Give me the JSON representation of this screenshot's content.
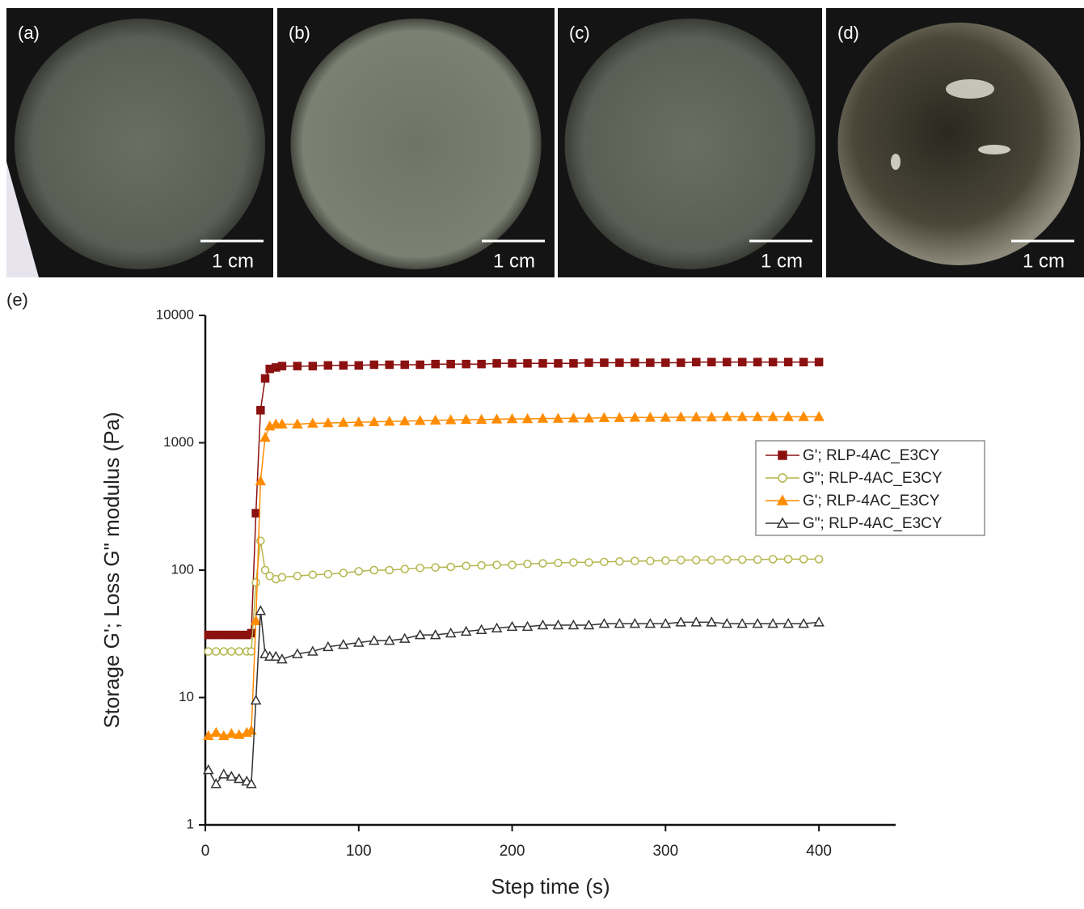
{
  "panels": [
    {
      "label": "(a)",
      "scale": "1 cm"
    },
    {
      "label": "(b)",
      "scale": "1 cm"
    },
    {
      "label": "(c)",
      "scale": "1 cm"
    },
    {
      "label": "(d)",
      "scale": "1 cm"
    }
  ],
  "chart_label": "(e)",
  "chart_data": {
    "type": "line",
    "x_label": "Step time (s)",
    "y_label": "Storage G'; Loss G\" modulus (Pa)",
    "xlim": [
      0,
      450
    ],
    "xticks": [
      0,
      100,
      200,
      300,
      400
    ],
    "ylim": [
      1,
      10000
    ],
    "yticks": [
      1,
      10,
      100,
      1000,
      10000
    ],
    "y_scale": "log",
    "legend": "right",
    "x": [
      2,
      7,
      12,
      17,
      22,
      27,
      30,
      33,
      36,
      39,
      42,
      46,
      50,
      60,
      70,
      80,
      90,
      100,
      110,
      120,
      130,
      140,
      150,
      160,
      170,
      180,
      190,
      200,
      210,
      220,
      230,
      240,
      250,
      260,
      270,
      280,
      290,
      300,
      310,
      320,
      330,
      340,
      350,
      360,
      370,
      380,
      390,
      400
    ],
    "series": [
      {
        "name": "G'; RLP-4AC_E3CY",
        "color": "#8b1010",
        "marker": "square",
        "filled": true,
        "values": [
          31,
          31,
          31,
          31,
          31,
          31,
          32,
          280,
          1800,
          3200,
          3800,
          3900,
          4000,
          4000,
          4000,
          4050,
          4050,
          4050,
          4100,
          4100,
          4100,
          4100,
          4150,
          4150,
          4150,
          4150,
          4200,
          4200,
          4200,
          4200,
          4200,
          4200,
          4250,
          4250,
          4250,
          4250,
          4250,
          4250,
          4250,
          4300,
          4300,
          4300,
          4300,
          4300,
          4300,
          4300,
          4300,
          4300
        ]
      },
      {
        "name": "G\"; RLP-4AC_E3CY",
        "color": "#b3b64a",
        "marker": "circle",
        "filled": false,
        "values": [
          23,
          23,
          23,
          23,
          23,
          23,
          23,
          80,
          170,
          100,
          90,
          85,
          88,
          90,
          92,
          93,
          95,
          98,
          100,
          100,
          102,
          104,
          105,
          106,
          108,
          109,
          110,
          110,
          112,
          113,
          114,
          115,
          115,
          116,
          117,
          118,
          118,
          119,
          120,
          120,
          120,
          121,
          121,
          121,
          122,
          122,
          122,
          122
        ]
      },
      {
        "name": "G'; RLP-4AC_E3CY",
        "color": "#ff8c00",
        "marker": "triangle",
        "filled": true,
        "values": [
          5,
          5.3,
          5,
          5.2,
          5.1,
          5.3,
          5.5,
          40,
          500,
          1100,
          1350,
          1400,
          1400,
          1400,
          1420,
          1430,
          1440,
          1450,
          1460,
          1470,
          1480,
          1490,
          1500,
          1510,
          1520,
          1520,
          1530,
          1540,
          1540,
          1550,
          1550,
          1560,
          1560,
          1570,
          1570,
          1580,
          1580,
          1580,
          1590,
          1590,
          1590,
          1600,
          1600,
          1600,
          1600,
          1600,
          1600,
          1600
        ]
      },
      {
        "name": "G\"; RLP-4AC_E3CY",
        "color": "#333333",
        "marker": "triangle",
        "filled": false,
        "values": [
          2.7,
          2.1,
          2.5,
          2.4,
          2.3,
          2.2,
          2.1,
          9.5,
          48,
          22,
          21,
          21,
          20,
          22,
          23,
          25,
          26,
          27,
          28,
          28,
          29,
          31,
          31,
          32,
          33,
          34,
          35,
          36,
          36,
          37,
          37,
          37,
          37,
          38,
          38,
          38,
          38,
          38,
          39,
          39,
          39,
          38,
          38,
          38,
          38,
          38,
          38,
          39
        ]
      }
    ]
  }
}
